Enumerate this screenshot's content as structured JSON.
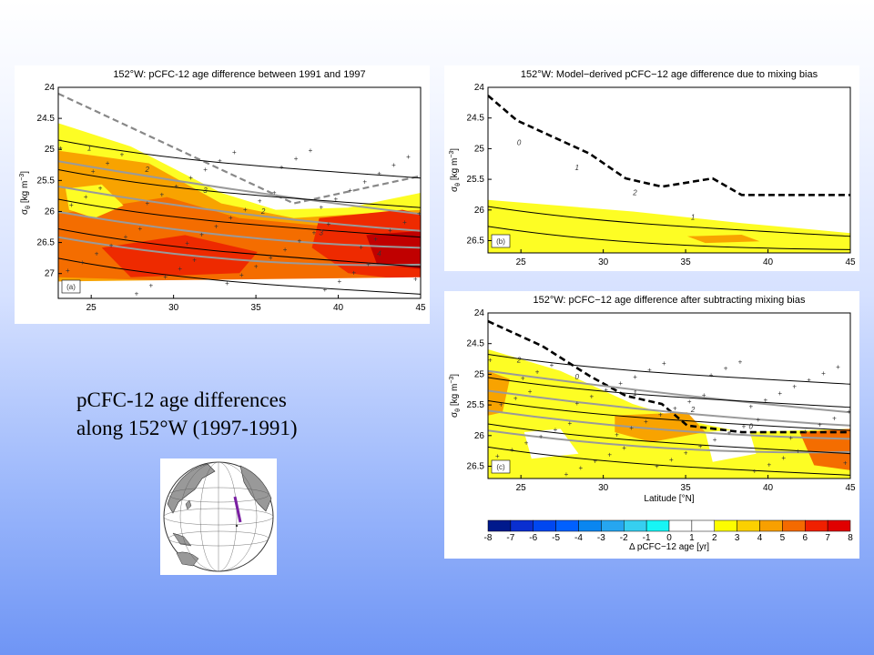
{
  "caption": {
    "line1": "pCFC-12 age differences",
    "line2": "along 152°W (1997-1991)"
  },
  "chart_data": [
    {
      "type": "heatmap",
      "panel": "(a)",
      "title": "152°W: pCFC-12 age difference between 1991 and 1997",
      "ylabel_main": "σ",
      "ylabel_sub": "θ",
      "ylabel_units": "[kg m",
      "ylabel_exp": "−3",
      "ylabel_close": "]",
      "xlim": [
        23,
        45
      ],
      "ylim": [
        27.4,
        24
      ],
      "xticks": [
        25,
        30,
        35,
        40,
        45
      ],
      "yticks": [
        24,
        24.5,
        25,
        25.5,
        26,
        26.5,
        27
      ],
      "contour_labels": [
        "1",
        "2",
        "3",
        "2",
        "3",
        "4"
      ]
    },
    {
      "type": "heatmap",
      "panel": "(b)",
      "title": "152°W: Model−derived pCFC−12 age difference due to mixing bias",
      "ylabel_main": "σ",
      "ylabel_sub": "θ",
      "ylabel_units": "[kg m",
      "ylabel_exp": "−3",
      "ylabel_close": "]",
      "xlim": [
        23,
        45
      ],
      "ylim": [
        26.7,
        24
      ],
      "xticks": [
        25,
        30,
        35,
        40,
        45
      ],
      "yticks": [
        24,
        24.5,
        25,
        25.5,
        26,
        26.5
      ],
      "contour_labels": [
        "0",
        "1",
        "2",
        "1"
      ]
    },
    {
      "type": "heatmap",
      "panel": "(c)",
      "title": "152°W: pCFC−12 age difference after subtracting mixing bias",
      "ylabel_main": "σ",
      "ylabel_sub": "θ",
      "ylabel_units": "[kg m",
      "ylabel_exp": "−3",
      "ylabel_close": "]",
      "xlabel": "Latitude [°N]",
      "xlim": [
        23,
        45
      ],
      "ylim": [
        26.7,
        24
      ],
      "xticks": [
        25,
        30,
        35,
        40,
        45
      ],
      "yticks": [
        24,
        24.5,
        25,
        25.5,
        26,
        26.5
      ],
      "contour_labels": [
        "2",
        "0",
        "1",
        "2",
        "0"
      ]
    }
  ],
  "colorbar": {
    "label": "Δ pCFC−12 age [yr]",
    "ticks": [
      -8,
      -7,
      -6,
      -5,
      -4,
      -3,
      -2,
      -1,
      0,
      1,
      2,
      3,
      4,
      5,
      6,
      7,
      8
    ],
    "colors": [
      "#00198c",
      "#0a2fd0",
      "#0047f0",
      "#0060ff",
      "#0a86f0",
      "#26a6f0",
      "#36cff0",
      "#17f5f5",
      "#ffffff",
      "#ffffff",
      "#fdfd00",
      "#fbd000",
      "#f8a000",
      "#f46a00",
      "#f02000",
      "#e00000",
      "#c00000",
      "#920000"
    ]
  },
  "colors": {
    "yellow": "#fdfd24",
    "orange": "#f8a300",
    "deep_orange": "#f46d00",
    "red": "#ee2a00",
    "dark_red": "#c00000"
  }
}
